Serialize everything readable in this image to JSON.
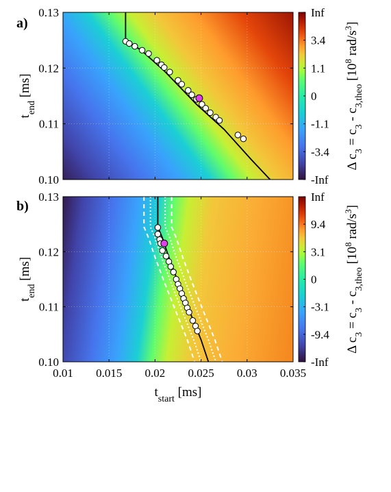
{
  "chart_data": [
    {
      "type": "heatmap",
      "panel_label": "a)",
      "xlim": [
        0.01,
        0.035
      ],
      "ylim": [
        0.1,
        0.13
      ],
      "x_ticks": [],
      "y_ticks": [
        "0.10",
        "0.11",
        "0.12",
        "0.13"
      ],
      "xlabel": "",
      "ylabel": "t_end [ms]",
      "colorbar": {
        "ticks": [
          "Inf",
          "3.4",
          "1.1",
          "0",
          "-1.1",
          "-3.4",
          "-Inf"
        ],
        "label": "Δ c_3 = c_3 - c_3,theo [10^8 rad/s^3]"
      },
      "zero_contour": [
        [
          0.0168,
          0.13
        ],
        [
          0.0168,
          0.125
        ],
        [
          0.0185,
          0.1232
        ],
        [
          0.021,
          0.1195
        ],
        [
          0.0245,
          0.1135
        ],
        [
          0.0275,
          0.109
        ],
        [
          0.0305,
          0.1035
        ],
        [
          0.0325,
          0.1
        ]
      ],
      "markers": [
        [
          0.0168,
          0.1248
        ],
        [
          0.0172,
          0.1244
        ],
        [
          0.0178,
          0.1239
        ],
        [
          0.0186,
          0.1232
        ],
        [
          0.0193,
          0.1226
        ],
        [
          0.0202,
          0.1214
        ],
        [
          0.0207,
          0.1206
        ],
        [
          0.021,
          0.1201
        ],
        [
          0.0216,
          0.1193
        ],
        [
          0.0225,
          0.1178
        ],
        [
          0.0229,
          0.1171
        ],
        [
          0.0236,
          0.116
        ],
        [
          0.024,
          0.1152
        ],
        [
          0.0245,
          0.1144
        ],
        [
          0.0251,
          0.1135
        ],
        [
          0.0255,
          0.1128
        ],
        [
          0.026,
          0.112
        ],
        [
          0.0266,
          0.1112
        ],
        [
          0.027,
          0.1106
        ],
        [
          0.029,
          0.108
        ],
        [
          0.0296,
          0.1073
        ]
      ],
      "highlight": [
        0.0248,
        0.1146
      ]
    },
    {
      "type": "heatmap",
      "panel_label": "b)",
      "xlim": [
        0.01,
        0.035
      ],
      "ylim": [
        0.1,
        0.13
      ],
      "x_ticks": [
        "0.01",
        "0.015",
        "0.02",
        "0.025",
        "0.03",
        "0.035"
      ],
      "y_ticks": [
        "0.10",
        "0.11",
        "0.12",
        "0.13"
      ],
      "xlabel": "t_start [ms]",
      "ylabel": "t_end [ms]",
      "colorbar": {
        "ticks": [
          "Inf",
          "9.4",
          "3.1",
          "0",
          "-3.1",
          "-9.4",
          "-Inf"
        ],
        "label": "Δ c_3 = c_3 - c_3,theo [10^8 rad/s^3]"
      },
      "zero_contour": [
        [
          0.0203,
          0.13
        ],
        [
          0.0203,
          0.1245
        ],
        [
          0.0208,
          0.1225
        ],
        [
          0.0215,
          0.119
        ],
        [
          0.0225,
          0.1145
        ],
        [
          0.0238,
          0.109
        ],
        [
          0.025,
          0.104
        ],
        [
          0.0258,
          0.1
        ]
      ],
      "markers": [
        [
          0.0203,
          0.1244
        ],
        [
          0.0203,
          0.1232
        ],
        [
          0.0205,
          0.1222
        ],
        [
          0.0206,
          0.1215
        ],
        [
          0.0208,
          0.1202
        ],
        [
          0.0212,
          0.1192
        ],
        [
          0.0215,
          0.1182
        ],
        [
          0.0217,
          0.1173
        ],
        [
          0.022,
          0.1163
        ],
        [
          0.0223,
          0.115
        ],
        [
          0.0225,
          0.1141
        ],
        [
          0.0227,
          0.1133
        ],
        [
          0.0229,
          0.1124
        ],
        [
          0.0231,
          0.1115
        ],
        [
          0.0233,
          0.1107
        ],
        [
          0.0235,
          0.1098
        ],
        [
          0.0237,
          0.109
        ],
        [
          0.0241,
          0.1075
        ],
        [
          0.0244,
          0.1065
        ],
        [
          0.0246,
          0.1056
        ]
      ],
      "highlight": [
        0.021,
        0.1215
      ]
    }
  ]
}
